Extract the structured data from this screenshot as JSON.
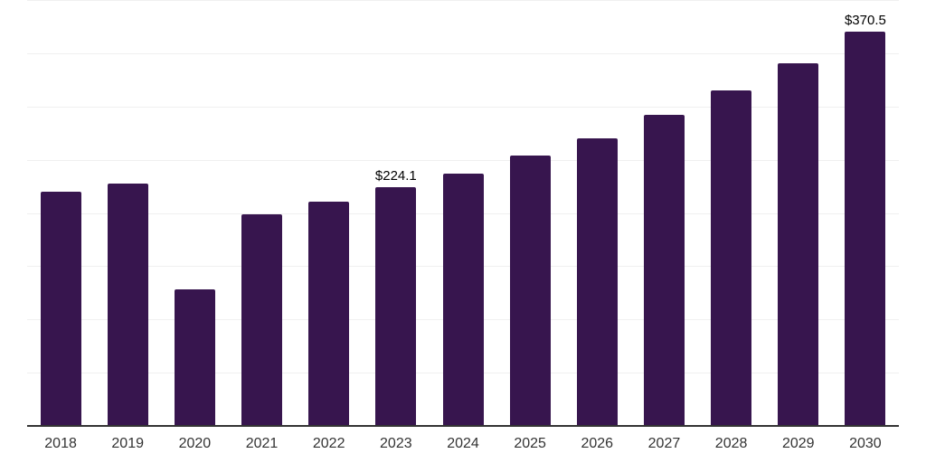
{
  "chart_data": {
    "type": "bar",
    "title": "",
    "xlabel": "",
    "ylabel": "",
    "categories": [
      "2018",
      "2019",
      "2020",
      "2021",
      "2022",
      "2023",
      "2024",
      "2025",
      "2026",
      "2027",
      "2028",
      "2029",
      "2030"
    ],
    "values": [
      220,
      228,
      128.5,
      199,
      211,
      224.1,
      237,
      254,
      270.5,
      292,
      315,
      340.5,
      370.5
    ],
    "data_labels": [
      {
        "index": 5,
        "text": "$224.1"
      },
      {
        "index": 12,
        "text": "$370.5"
      }
    ],
    "ylim": [
      0,
      400
    ],
    "grid_step": 50,
    "grid": "horizontal-only",
    "legend": false,
    "y_tick_labels_visible": false
  },
  "colors": {
    "bar": "#37154e",
    "gridline": "#f0f0f0",
    "axis_line": "#333333",
    "tick_label": "#333333",
    "data_label": "#000000",
    "background": "#ffffff"
  }
}
